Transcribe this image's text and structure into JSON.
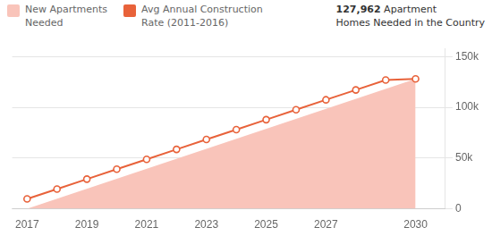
{
  "chart_data": {
    "type": "line",
    "x": [
      2017,
      2018,
      2019,
      2020,
      2021,
      2022,
      2023,
      2024,
      2025,
      2026,
      2027,
      2028,
      2029,
      2030
    ],
    "series": [
      {
        "name": "New Apartments\nNeeded",
        "type": "area",
        "color": "#f9c4ba",
        "x": [
          2017,
          2030,
          2030
        ],
        "values": [
          0,
          127962,
          0
        ]
      },
      {
        "name": "Avg Annual Construction\nRate (2011-2016)",
        "type": "line",
        "color": "#e8623a",
        "marker": "open circle",
        "values": [
          9762,
          19524,
          29286,
          39048,
          48810,
          58572,
          68334,
          78096,
          87858,
          97620,
          107382,
          117144,
          126906,
          127962
        ]
      }
    ],
    "annotation": "127,962 Apartment\nHomes Needed in the Country",
    "xlim": [
      2016.5,
      2031.0
    ],
    "xticks": [
      2017,
      2019,
      2021,
      2023,
      2025,
      2027,
      2030
    ],
    "ylim": [
      0,
      158000
    ],
    "yticks": [
      0,
      {
        "value": 50000,
        "label": "50k"
      },
      {
        "value": 100000,
        "label": "100k"
      },
      {
        "value": 150000,
        "label": "150k"
      }
    ],
    "grid": "y",
    "legend": "top"
  }
}
